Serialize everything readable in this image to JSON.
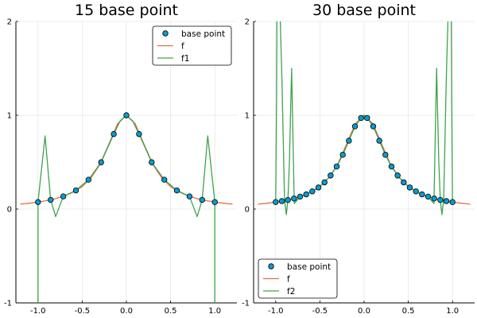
{
  "chart_data": [
    {
      "type": "line",
      "title": "15 base point",
      "xlabel": "",
      "ylabel": "",
      "xlim": [
        -1.25,
        1.25
      ],
      "ylim": [
        -1,
        2
      ],
      "xticks": [
        -1.0,
        -0.5,
        0.0,
        0.5,
        1.0
      ],
      "xtick_labels": [
        "-1.0",
        "-0.5",
        "0.0",
        "0.5",
        "1.0"
      ],
      "yticks": [
        -1,
        0,
        1,
        2
      ],
      "ytick_labels": [
        "-1",
        "0",
        "1",
        "2"
      ],
      "grid": true,
      "legend_position": "top-right",
      "legend": [
        "base point",
        "f",
        "f1"
      ],
      "base_points": {
        "x": [
          -1.0,
          -0.857,
          -0.714,
          -0.571,
          -0.429,
          -0.286,
          -0.143,
          0.0,
          0.143,
          0.286,
          0.429,
          0.571,
          0.714,
          0.857,
          1.0
        ],
        "y": [
          0.075,
          0.098,
          0.135,
          0.199,
          0.313,
          0.499,
          0.8,
          1.0,
          0.8,
          0.499,
          0.313,
          0.199,
          0.135,
          0.098,
          0.075
        ]
      },
      "series": [
        {
          "name": "f",
          "x": [
            -1.2,
            -1.1,
            -1.0,
            -0.9,
            -0.8,
            -0.7,
            -0.6,
            -0.5,
            -0.4,
            -0.3,
            -0.2,
            -0.1,
            0.0,
            0.1,
            0.2,
            0.3,
            0.4,
            0.5,
            0.6,
            0.7,
            0.8,
            0.9,
            1.0,
            1.1,
            1.2
          ],
          "y": [
            0.053,
            0.062,
            0.075,
            0.09,
            0.111,
            0.14,
            0.182,
            0.24,
            0.333,
            0.476,
            0.69,
            0.909,
            1.0,
            0.909,
            0.69,
            0.476,
            0.333,
            0.24,
            0.182,
            0.14,
            0.111,
            0.09,
            0.075,
            0.062,
            0.053
          ]
        },
        {
          "name": "f1",
          "x": [
            -1.0,
            -1.0,
            -0.92,
            -0.857,
            -0.8,
            -0.714,
            -0.571,
            -0.429,
            -0.286,
            -0.143,
            -0.071,
            0.0,
            0.071,
            0.143,
            0.286,
            0.429,
            0.571,
            0.714,
            0.8,
            0.857,
            0.92,
            1.0,
            1.0
          ],
          "y": [
            -1.0,
            0.075,
            0.78,
            0.098,
            -0.08,
            0.135,
            0.199,
            0.313,
            0.499,
            0.8,
            0.94,
            1.0,
            0.94,
            0.8,
            0.499,
            0.313,
            0.199,
            0.135,
            -0.08,
            0.098,
            0.78,
            0.075,
            -1.0
          ]
        }
      ]
    },
    {
      "type": "line",
      "title": "30 base point",
      "xlabel": "",
      "ylabel": "",
      "xlim": [
        -1.25,
        1.25
      ],
      "ylim": [
        -1,
        2
      ],
      "xticks": [
        -1.0,
        -0.5,
        0.0,
        0.5,
        1.0
      ],
      "xtick_labels": [
        "-1.0",
        "-0.5",
        "0.0",
        "0.5",
        "1.0"
      ],
      "yticks": [
        -1,
        0,
        1,
        2
      ],
      "ytick_labels": [
        "-1",
        "0",
        "1",
        "2"
      ],
      "grid": true,
      "legend_position": "bottom-left",
      "legend": [
        "base point",
        "f",
        "f2"
      ],
      "base_points": {
        "x": [
          -1.0,
          -0.931,
          -0.862,
          -0.793,
          -0.724,
          -0.655,
          -0.586,
          -0.517,
          -0.448,
          -0.379,
          -0.31,
          -0.241,
          -0.172,
          -0.103,
          -0.034,
          0.034,
          0.103,
          0.172,
          0.241,
          0.31,
          0.379,
          0.448,
          0.517,
          0.586,
          0.655,
          0.724,
          0.793,
          0.862,
          0.931,
          1.0
        ],
        "y": [
          0.075,
          0.085,
          0.097,
          0.113,
          0.133,
          0.157,
          0.189,
          0.23,
          0.285,
          0.358,
          0.454,
          0.579,
          0.729,
          0.882,
          0.971,
          0.971,
          0.882,
          0.729,
          0.579,
          0.454,
          0.358,
          0.285,
          0.23,
          0.189,
          0.157,
          0.133,
          0.113,
          0.097,
          0.085,
          0.075
        ]
      },
      "series": [
        {
          "name": "f",
          "x": [
            -1.2,
            -1.1,
            -1.0,
            -0.9,
            -0.8,
            -0.7,
            -0.6,
            -0.5,
            -0.4,
            -0.3,
            -0.2,
            -0.1,
            0.0,
            0.1,
            0.2,
            0.3,
            0.4,
            0.5,
            0.6,
            0.7,
            0.8,
            0.9,
            1.0,
            1.1,
            1.2
          ],
          "y": [
            0.053,
            0.062,
            0.075,
            0.09,
            0.111,
            0.14,
            0.182,
            0.24,
            0.333,
            0.476,
            0.69,
            0.909,
            1.0,
            0.909,
            0.69,
            0.476,
            0.333,
            0.24,
            0.182,
            0.14,
            0.111,
            0.09,
            0.075,
            0.062,
            0.053
          ]
        },
        {
          "name": "f2",
          "x": [
            -1.0,
            -0.99,
            -0.985,
            -0.96,
            -0.93,
            -0.9,
            -0.88,
            -0.862,
            -0.845,
            -0.82,
            -0.79,
            -0.724,
            -0.655,
            -0.586,
            -0.517,
            -0.448,
            -0.379,
            -0.31,
            -0.241,
            -0.172,
            -0.103,
            -0.034,
            0.0,
            0.034,
            0.103,
            0.172,
            0.241,
            0.31,
            0.379,
            0.448,
            0.517,
            0.586,
            0.655,
            0.724,
            0.79,
            0.82,
            0.845,
            0.862,
            0.88,
            0.9,
            0.93,
            0.96,
            0.985,
            0.99,
            1.0
          ],
          "y": [
            0.075,
            1.2,
            2.2,
            2.4,
            1.4,
            0.1,
            -0.06,
            0.097,
            0.5,
            1.5,
            0.06,
            0.133,
            0.157,
            0.189,
            0.23,
            0.285,
            0.358,
            0.454,
            0.579,
            0.729,
            0.882,
            0.971,
            1.0,
            0.971,
            0.882,
            0.729,
            0.579,
            0.454,
            0.358,
            0.285,
            0.23,
            0.189,
            0.157,
            0.133,
            0.06,
            1.5,
            0.5,
            0.097,
            -0.06,
            0.1,
            1.4,
            2.4,
            2.2,
            1.2,
            0.075
          ]
        }
      ]
    }
  ],
  "colors": {
    "base_point": "#0a9bcf",
    "f": "#e26f46",
    "f1": "#3da44d",
    "f2": "#3da44d",
    "grid": "#e6e6e6",
    "axis": "#000000"
  }
}
